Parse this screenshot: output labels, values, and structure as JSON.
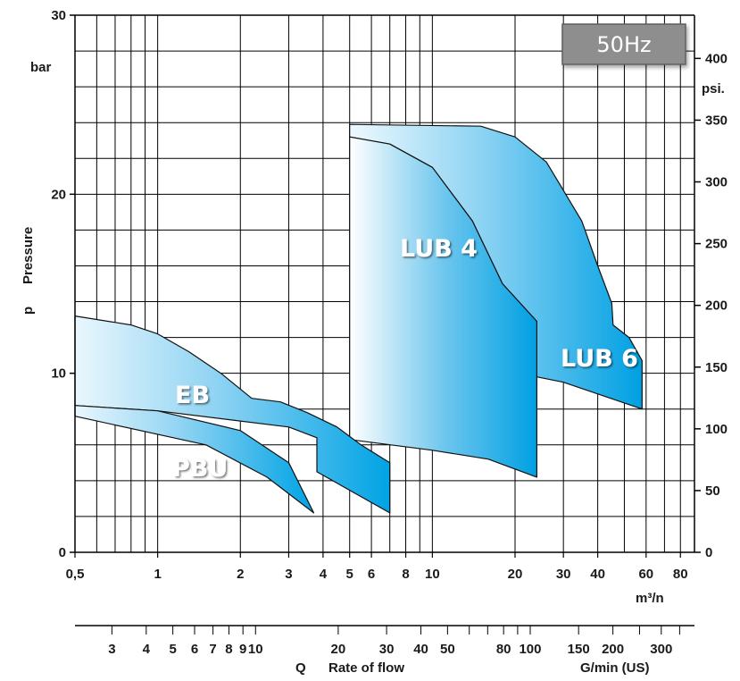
{
  "chart_data": {
    "type": "area",
    "badge": "50Hz",
    "y_left": {
      "label_symbol": "p",
      "label": "Pressure",
      "unit": "bar",
      "range": [
        0,
        30
      ],
      "ticks": [
        "0",
        "10",
        "20",
        "30"
      ],
      "tick_values": [
        0,
        10,
        20,
        30
      ]
    },
    "y_right": {
      "unit": "psi.",
      "range": [
        0,
        435
      ],
      "ticks": [
        "0",
        "50",
        "100",
        "150",
        "200",
        "250",
        "300",
        "350",
        "400"
      ],
      "tick_values": [
        0,
        50,
        100,
        150,
        200,
        250,
        300,
        350,
        400
      ]
    },
    "x_bottom": {
      "unit": "m³/n",
      "scale": "log",
      "range": [
        0.5,
        90
      ],
      "ticks": [
        "0,5",
        "1",
        "2",
        "3",
        "4",
        "5",
        "6",
        "8",
        "10",
        "20",
        "30",
        "40",
        "60",
        "80"
      ],
      "tick_values": [
        0.5,
        1,
        2,
        3,
        4,
        5,
        6,
        8,
        10,
        20,
        30,
        40,
        60,
        80
      ]
    },
    "x_secondary": {
      "symbol": "Q",
      "label": "Rate of flow",
      "unit": "G/min (US)",
      "scale": "log",
      "ticks": [
        "3",
        "4",
        "5",
        "6",
        "7",
        "8",
        "9",
        "10",
        "20",
        "30",
        "40",
        "50",
        "80",
        "100",
        "150",
        "200",
        "300"
      ],
      "tick_values": [
        3,
        4,
        5,
        6,
        7,
        8,
        9,
        10,
        20,
        30,
        40,
        50,
        80,
        100,
        150,
        200,
        300
      ]
    },
    "series": [
      {
        "name": "EB",
        "color": "#00a0e3",
        "outline": [
          [
            0.5,
            13.2
          ],
          [
            0.8,
            12.7
          ],
          [
            1.0,
            12.2
          ],
          [
            1.3,
            11.2
          ],
          [
            1.7,
            10.0
          ],
          [
            2.2,
            8.6
          ],
          [
            2.8,
            8.4
          ],
          [
            3.5,
            7.8
          ],
          [
            4.5,
            7.0
          ],
          [
            5.5,
            6.0
          ],
          [
            7.0,
            5.0
          ],
          [
            7.0,
            2.2
          ],
          [
            3.8,
            4.5
          ],
          [
            3.8,
            6.4
          ],
          [
            3.0,
            7.0
          ],
          [
            1.0,
            7.9
          ],
          [
            0.5,
            8.2
          ]
        ]
      },
      {
        "name": "PBU",
        "color": "#00a0e3",
        "outline": [
          [
            0.5,
            8.2
          ],
          [
            1.0,
            7.9
          ],
          [
            2.0,
            6.8
          ],
          [
            3.0,
            5.0
          ],
          [
            3.7,
            2.2
          ],
          [
            3.7,
            2.2
          ],
          [
            2.5,
            4.2
          ],
          [
            1.5,
            6.0
          ],
          [
            0.5,
            7.6
          ]
        ]
      },
      {
        "name": "LUB 4",
        "color": "#00a0e3",
        "outline": [
          [
            5.0,
            23.2
          ],
          [
            7.0,
            22.8
          ],
          [
            10.0,
            21.5
          ],
          [
            14.0,
            18.5
          ],
          [
            18.0,
            15.0
          ],
          [
            24.0,
            12.9
          ],
          [
            24.0,
            4.2
          ],
          [
            16.0,
            5.2
          ],
          [
            10.0,
            5.7
          ],
          [
            5.0,
            6.3
          ]
        ]
      },
      {
        "name": "LUB 6",
        "color": "#00a0e3",
        "outline": [
          [
            5.0,
            23.9
          ],
          [
            15.0,
            23.8
          ],
          [
            20.0,
            23.2
          ],
          [
            26.0,
            21.8
          ],
          [
            35.0,
            18.5
          ],
          [
            40.0,
            16.0
          ],
          [
            45.0,
            13.9
          ],
          [
            45.5,
            12.7
          ],
          [
            52.0,
            12.0
          ],
          [
            58.0,
            10.7
          ],
          [
            58.0,
            8.0
          ],
          [
            30.0,
            9.5
          ],
          [
            24.0,
            9.8
          ],
          [
            24.0,
            12.9
          ],
          [
            18.0,
            15.0
          ],
          [
            14.0,
            18.5
          ],
          [
            10.0,
            21.5
          ],
          [
            7.0,
            22.8
          ],
          [
            5.0,
            23.2
          ]
        ]
      }
    ]
  }
}
